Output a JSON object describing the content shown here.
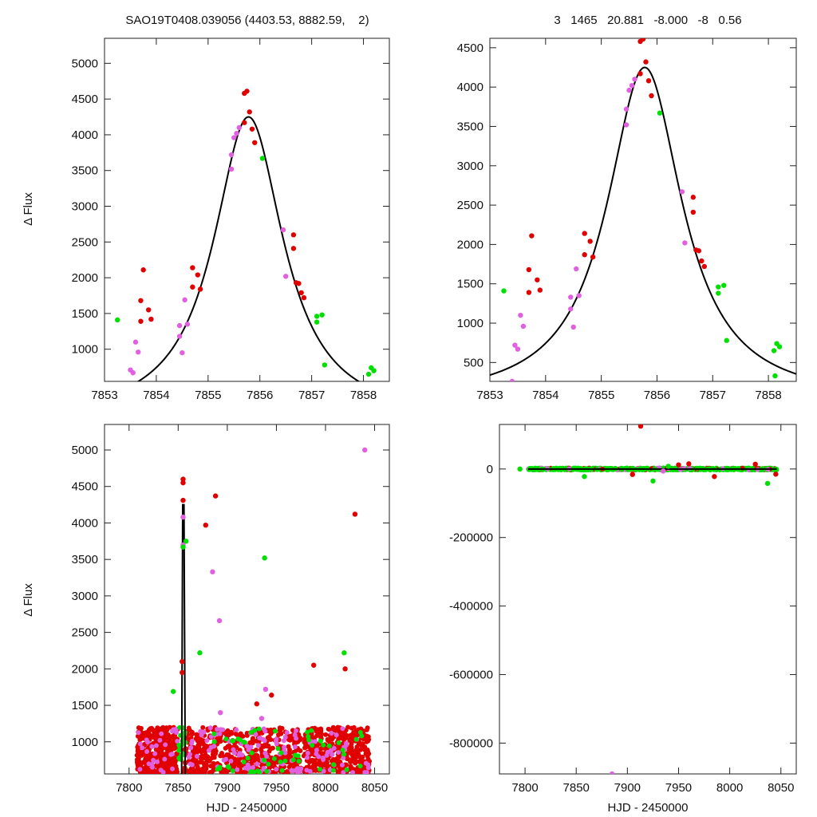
{
  "header": {
    "left_title": "SAO19T0408.039056 (4403.53, 8882.59,    2)",
    "right_title": "3   1465   20.881   -8.000   -8   0.56"
  },
  "colors": {
    "red": "#e00000",
    "magenta": "#e060e0",
    "green": "#00e000",
    "model": "#000000"
  },
  "chart_data": [
    {
      "type": "scatter",
      "panel": "top-left",
      "title": "SAO19T0408.039056 (4403.53, 8882.59,    2)",
      "xlabel": "",
      "ylabel": "Δ Flux",
      "xlim": [
        7853,
        7858.5
      ],
      "ylim": [
        550,
        5350
      ],
      "xticks": [
        7853,
        7854,
        7855,
        7856,
        7857,
        7858
      ],
      "yticks": [
        1000,
        1500,
        2000,
        2500,
        3000,
        3500,
        4000,
        4500,
        5000
      ],
      "series": [
        {
          "color": "red",
          "points": [
            [
              7853.7,
              1390
            ],
            [
              7853.7,
              1680
            ],
            [
              7853.75,
              2110
            ],
            [
              7853.85,
              1550
            ],
            [
              7853.9,
              1420
            ],
            [
              7854.7,
              2140
            ],
            [
              7854.7,
              1870
            ],
            [
              7854.8,
              2040
            ],
            [
              7854.85,
              1840
            ],
            [
              7855.7,
              4580
            ],
            [
              7855.75,
              4610
            ],
            [
              7855.7,
              4170
            ],
            [
              7855.8,
              4320
            ],
            [
              7855.85,
              4080
            ],
            [
              7855.9,
              3890
            ],
            [
              7856.65,
              2600
            ],
            [
              7856.65,
              2410
            ],
            [
              7856.7,
              1930
            ],
            [
              7856.75,
              1920
            ],
            [
              7856.8,
              1790
            ],
            [
              7856.85,
              1720
            ]
          ]
        },
        {
          "color": "magenta",
          "points": [
            [
              7853.5,
              710
            ],
            [
              7853.55,
              670
            ],
            [
              7853.6,
              1100
            ],
            [
              7853.65,
              960
            ],
            [
              7854.45,
              1330
            ],
            [
              7854.45,
              1180
            ],
            [
              7854.5,
              950
            ],
            [
              7854.55,
              1690
            ],
            [
              7854.6,
              1350
            ],
            [
              7855.45,
              3520
            ],
            [
              7855.45,
              3720
            ],
            [
              7855.5,
              3960
            ],
            [
              7855.55,
              4020
            ],
            [
              7855.6,
              4100
            ],
            [
              7856.45,
              2670
            ],
            [
              7856.5,
              2020
            ]
          ]
        },
        {
          "color": "green",
          "points": [
            [
              7853.25,
              1410
            ],
            [
              7856.05,
              3670
            ],
            [
              7857.1,
              1380
            ],
            [
              7857.1,
              1460
            ],
            [
              7857.2,
              1480
            ],
            [
              7857.25,
              780
            ],
            [
              7858.1,
              650
            ],
            [
              7858.15,
              740
            ],
            [
              7858.2,
              700
            ]
          ]
        }
      ],
      "model": {
        "peak_x": 7855.78,
        "peak_y": 4250,
        "width": 0.82,
        "baseline": 0
      }
    },
    {
      "type": "scatter",
      "panel": "top-right",
      "title": "3   1465   20.881   -8.000   -8   0.56",
      "xlabel": "",
      "ylabel": "",
      "xlim": [
        7853,
        7858.5
      ],
      "ylim": [
        260,
        4620
      ],
      "xticks": [
        7853,
        7854,
        7855,
        7856,
        7857,
        7858
      ],
      "yticks": [
        500,
        1000,
        1500,
        2000,
        2500,
        3000,
        3500,
        4000,
        4500
      ],
      "series": [
        {
          "color": "red",
          "points": [
            [
              7853.7,
              1390
            ],
            [
              7853.7,
              1680
            ],
            [
              7853.75,
              2110
            ],
            [
              7853.85,
              1550
            ],
            [
              7853.9,
              1420
            ],
            [
              7854.7,
              2140
            ],
            [
              7854.7,
              1870
            ],
            [
              7854.8,
              2040
            ],
            [
              7854.85,
              1840
            ],
            [
              7855.7,
              4580
            ],
            [
              7855.75,
              4610
            ],
            [
              7855.7,
              4170
            ],
            [
              7855.8,
              4320
            ],
            [
              7855.85,
              4080
            ],
            [
              7855.9,
              3890
            ],
            [
              7856.65,
              2600
            ],
            [
              7856.65,
              2410
            ],
            [
              7856.7,
              1930
            ],
            [
              7856.75,
              1920
            ],
            [
              7856.8,
              1790
            ],
            [
              7856.85,
              1720
            ]
          ]
        },
        {
          "color": "magenta",
          "points": [
            [
              7853.4,
              260
            ],
            [
              7853.45,
              720
            ],
            [
              7853.5,
              670
            ],
            [
              7853.55,
              1100
            ],
            [
              7853.6,
              960
            ],
            [
              7854.45,
              1330
            ],
            [
              7854.45,
              1180
            ],
            [
              7854.5,
              950
            ],
            [
              7854.55,
              1690
            ],
            [
              7854.6,
              1350
            ],
            [
              7855.45,
              3520
            ],
            [
              7855.45,
              3720
            ],
            [
              7855.5,
              3960
            ],
            [
              7855.55,
              4020
            ],
            [
              7855.6,
              4100
            ],
            [
              7856.45,
              2670
            ],
            [
              7856.5,
              2020
            ]
          ]
        },
        {
          "color": "green",
          "points": [
            [
              7853.25,
              1410
            ],
            [
              7856.05,
              3670
            ],
            [
              7857.1,
              1380
            ],
            [
              7857.1,
              1460
            ],
            [
              7857.2,
              1480
            ],
            [
              7857.25,
              780
            ],
            [
              7858.1,
              650
            ],
            [
              7858.12,
              330
            ],
            [
              7858.15,
              740
            ],
            [
              7858.2,
              700
            ]
          ]
        }
      ],
      "model": {
        "peak_x": 7855.78,
        "peak_y": 4250,
        "width": 0.82,
        "baseline": 0
      }
    },
    {
      "type": "scatter",
      "panel": "bottom-left",
      "title": "",
      "xlabel": "HJD - 2450000",
      "ylabel": "Δ Flux",
      "xlim": [
        7775,
        8065
      ],
      "ylim": [
        560,
        5350
      ],
      "xticks": [
        7800,
        7850,
        7900,
        7950,
        8000,
        8050
      ],
      "yticks": [
        1000,
        1500,
        2000,
        2500,
        3000,
        3500,
        4000,
        4500,
        5000
      ],
      "series": [
        {
          "color": "red",
          "outliers": [
            [
              7855,
              4600
            ],
            [
              7855,
              4550
            ],
            [
              7855,
              4310
            ],
            [
              7878,
              3970
            ],
            [
              7888,
              4370
            ],
            [
              8030,
              4120
            ],
            [
              7988,
              2050
            ],
            [
              8020,
              2000
            ],
            [
              7930,
              1520
            ],
            [
              7945,
              1640
            ],
            [
              7854,
              2100
            ],
            [
              7854,
              1950
            ]
          ]
        },
        {
          "color": "magenta",
          "outliers": [
            [
              8040,
              5000
            ],
            [
              7885,
              3330
            ],
            [
              7892,
              2660
            ],
            [
              7939,
              1720
            ],
            [
              7855,
              4080
            ],
            [
              7855,
              3700
            ],
            [
              7893,
              1400
            ],
            [
              7935,
              1320
            ]
          ]
        },
        {
          "color": "green",
          "outliers": [
            [
              7938,
              3520
            ],
            [
              7858,
              3750
            ],
            [
              7872,
              2220
            ],
            [
              8019,
              2220
            ],
            [
              7845,
              1690
            ],
            [
              7855,
              3670
            ]
          ]
        }
      ],
      "model": {
        "peak_x": 7855.78,
        "peak_y": 4250,
        "width": 0.82,
        "baseline": 0
      }
    },
    {
      "type": "scatter",
      "panel": "bottom-right",
      "title": "",
      "xlabel": "HJD - 2450000",
      "ylabel": "",
      "xlim": [
        7775,
        8065
      ],
      "ylim": [
        -890000,
        130000
      ],
      "xticks": [
        7800,
        7850,
        7900,
        7950,
        8000,
        8050
      ],
      "yticks": [
        0,
        -200000,
        -400000,
        -600000,
        -800000
      ],
      "series": [
        {
          "color": "green",
          "outliers": [
            [
              7795,
              0
            ],
            [
              7858,
              -22000
            ],
            [
              7925,
              -35000
            ],
            [
              8037,
              -42000
            ],
            [
              7940,
              8000
            ]
          ]
        },
        {
          "color": "red",
          "outliers": [
            [
              7913,
              125000
            ],
            [
              7950,
              12000
            ],
            [
              7985,
              -22000
            ],
            [
              7960,
              15000
            ],
            [
              8045,
              -15000
            ],
            [
              8025,
              14000
            ],
            [
              7905,
              -16000
            ]
          ]
        },
        {
          "color": "magenta",
          "outliers": [
            [
              7885,
              -890000
            ],
            [
              7935,
              -6000
            ]
          ]
        }
      ]
    }
  ]
}
